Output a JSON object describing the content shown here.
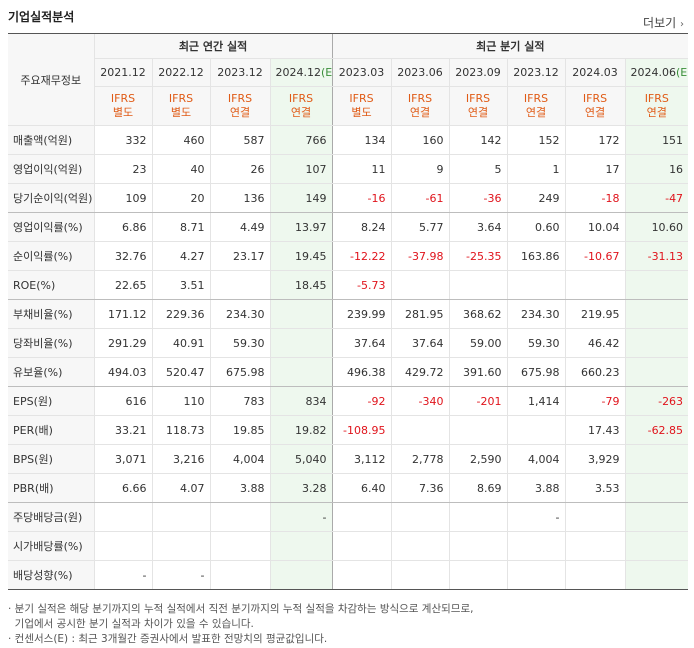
{
  "title": "기업실적분석",
  "more_label": "더보기",
  "more_arrow": "›",
  "row_header": "주요재무정보",
  "annual_header": "최근 연간 실적",
  "quarter_header": "최근 분기 실적",
  "periods": [
    "2021.12",
    "2022.12",
    "2023.12",
    "2024.12",
    "2023.03",
    "2023.06",
    "2023.09",
    "2023.12",
    "2024.03",
    "2024.06"
  ],
  "est_mark": "(E)",
  "basis": [
    [
      "IFRS",
      "별도"
    ],
    [
      "IFRS",
      "별도"
    ],
    [
      "IFRS",
      "연결"
    ],
    [
      "IFRS",
      "연결"
    ],
    [
      "IFRS",
      "별도"
    ],
    [
      "IFRS",
      "연결"
    ],
    [
      "IFRS",
      "연결"
    ],
    [
      "IFRS",
      "연결"
    ],
    [
      "IFRS",
      "연결"
    ],
    [
      "IFRS",
      "연결"
    ]
  ],
  "rows": [
    {
      "label": "매출액(억원)",
      "values": [
        "332",
        "460",
        "587",
        "766",
        "134",
        "160",
        "142",
        "152",
        "172",
        "151"
      ]
    },
    {
      "label": "영업이익(억원)",
      "values": [
        "23",
        "40",
        "26",
        "107",
        "11",
        "9",
        "5",
        "1",
        "17",
        "16"
      ]
    },
    {
      "label": "당기순이익(억원)",
      "values": [
        "109",
        "20",
        "136",
        "149",
        "-16",
        "-61",
        "-36",
        "249",
        "-18",
        "-47"
      ]
    },
    {
      "label": "영업이익률(%)",
      "values": [
        "6.86",
        "8.71",
        "4.49",
        "13.97",
        "8.24",
        "5.77",
        "3.64",
        "0.60",
        "10.04",
        "10.60"
      ]
    },
    {
      "label": "순이익률(%)",
      "values": [
        "32.76",
        "4.27",
        "23.17",
        "19.45",
        "-12.22",
        "-37.98",
        "-25.35",
        "163.86",
        "-10.67",
        "-31.13"
      ]
    },
    {
      "label": "ROE(%)",
      "values": [
        "22.65",
        "3.51",
        "",
        "18.45",
        "-5.73",
        "",
        "",
        "",
        "",
        ""
      ]
    },
    {
      "label": "부채비율(%)",
      "values": [
        "171.12",
        "229.36",
        "234.30",
        "",
        "239.99",
        "281.95",
        "368.62",
        "234.30",
        "219.95",
        ""
      ]
    },
    {
      "label": "당좌비율(%)",
      "values": [
        "291.29",
        "40.91",
        "59.30",
        "",
        "37.64",
        "37.64",
        "59.00",
        "59.30",
        "46.42",
        ""
      ]
    },
    {
      "label": "유보율(%)",
      "values": [
        "494.03",
        "520.47",
        "675.98",
        "",
        "496.38",
        "429.72",
        "391.60",
        "675.98",
        "660.23",
        ""
      ]
    },
    {
      "label": "EPS(원)",
      "values": [
        "616",
        "110",
        "783",
        "834",
        "-92",
        "-340",
        "-201",
        "1,414",
        "-79",
        "-263"
      ]
    },
    {
      "label": "PER(배)",
      "values": [
        "33.21",
        "118.73",
        "19.85",
        "19.82",
        "-108.95",
        "",
        "",
        "",
        "17.43",
        "-62.85"
      ]
    },
    {
      "label": "BPS(원)",
      "values": [
        "3,071",
        "3,216",
        "4,004",
        "5,040",
        "3,112",
        "2,778",
        "2,590",
        "4,004",
        "3,929",
        ""
      ]
    },
    {
      "label": "PBR(배)",
      "values": [
        "6.66",
        "4.07",
        "3.88",
        "3.28",
        "6.40",
        "7.36",
        "8.69",
        "3.88",
        "3.53",
        ""
      ]
    },
    {
      "label": "주당배당금(원)",
      "values": [
        "",
        "",
        "",
        "-",
        "",
        "",
        "",
        "-",
        "",
        ""
      ]
    },
    {
      "label": "시가배당률(%)",
      "values": [
        "",
        "",
        "",
        "",
        "",
        "",
        "",
        "",
        "",
        ""
      ]
    },
    {
      "label": "배당성향(%)",
      "values": [
        "-",
        "-",
        "",
        "",
        "",
        "",
        "",
        "",
        "",
        ""
      ]
    }
  ],
  "notes": [
    "· 분기 실적은 해당 분기까지의 누적 실적에서 직전 분기까지의 누적 실적을 차감하는 방식으로 계산되므로,",
    "  기업에서 공시한 분기 실적과 차이가 있을 수 있습니다.",
    "· 컨센서스(E) : 최근 3개월간 증권사에서 발표한 전망치의 평균값입니다."
  ]
}
